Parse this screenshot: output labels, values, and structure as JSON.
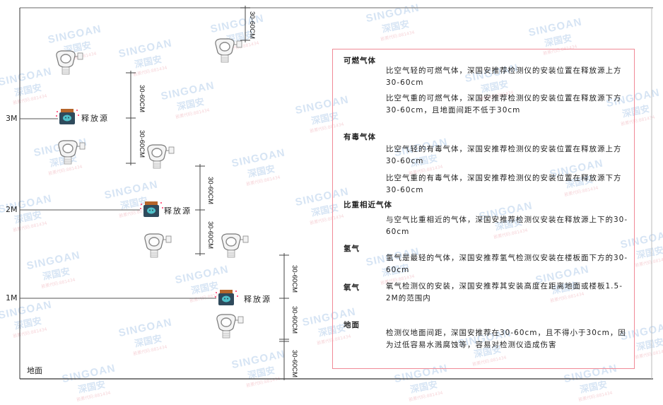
{
  "watermark": {
    "brand": "SINGOAN",
    "chinese": "深国安",
    "sub": "股票代码:881434"
  },
  "heights": {
    "m3": "3M",
    "m2": "2M",
    "m1": "1M"
  },
  "ground_label": "地面",
  "source_label": "释放源",
  "dimension_label": "30-60CM",
  "info": {
    "sections": [
      {
        "heading": "可燃气体",
        "paragraphs": [
          "比空气轻的可燃气体，深国安推荐检测仪的安装位置在释放源上方30-60cm",
          "比空气重的可燃气体，深国安推荐检测仪的安装位置在释放源下方30-60cm，且地面间距不低于30cm"
        ]
      },
      {
        "heading": "有毒气体",
        "paragraphs": [
          "比空气轻的有毒气体，深国安推荐检测仪的安装位置在释放源上方30-60cm",
          "比空气重的有毒气体，深国安推荐检测仪的安装位置在释放源下方30-60cm"
        ]
      },
      {
        "heading": "比重相近气体",
        "paragraphs": [
          "与空气比重相近的气体，深国安推荐检测仪安装在释放源上下的30-60cm"
        ]
      },
      {
        "heading": "氢气",
        "paragraphs": [
          "氢气是最轻的气体，深国安推荐氢气检测仪安装在楼板面下方的30-60cm"
        ]
      },
      {
        "heading": "氧气",
        "paragraphs": [
          "氧气检测仪的安装，深国安推荐其安装高度在距离地面或楼板1.5-2M的范围内"
        ]
      },
      {
        "heading": "地面",
        "paragraphs": [
          "检测仪地面间距，深国安推荐在30-60cm，且不得小于30cm，因为过低容易水溅腐蚀等，容易对检测仪造成伤害"
        ]
      }
    ]
  },
  "colors": {
    "line": "#555555",
    "border": "#f08a96",
    "source_body": "#2f4a5c",
    "source_cap": "#b5652a",
    "source_face": "#4fc1c9"
  }
}
